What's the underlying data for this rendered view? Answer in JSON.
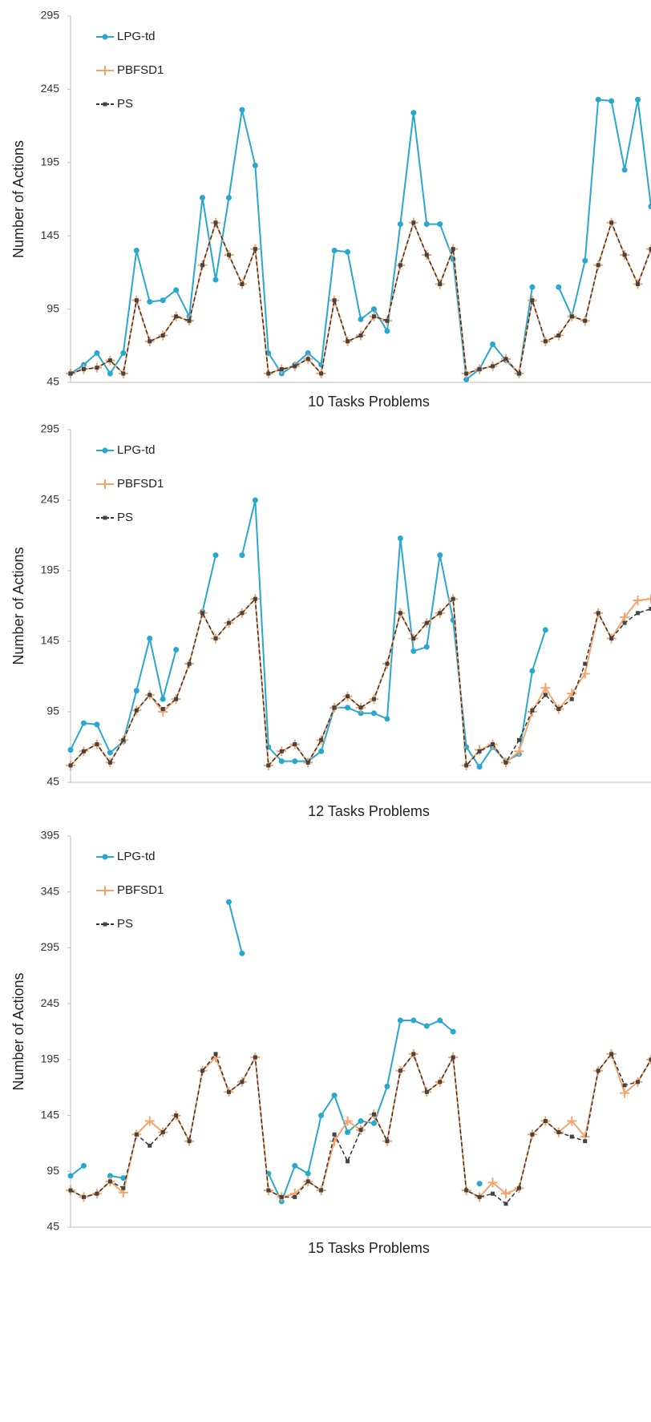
{
  "chart_data": [
    {
      "type": "line",
      "x_label": "10 Tasks Problems",
      "y_label": "Number of Actions",
      "ylim": [
        45,
        295
      ],
      "yticks": [
        45,
        95,
        145,
        195,
        245,
        295
      ],
      "series": [
        {
          "name": "LPG-td",
          "color": "#2aa7cf",
          "values": [
            51,
            57,
            65,
            51,
            65,
            135,
            100,
            101,
            108,
            90,
            171,
            115,
            171,
            231,
            193,
            65,
            51,
            57,
            65,
            57,
            135,
            134,
            88,
            95,
            80,
            153,
            229,
            153,
            153,
            129,
            47,
            54,
            71,
            60,
            51,
            110,
            null,
            110,
            90,
            128,
            238,
            237,
            190,
            238,
            165
          ]
        },
        {
          "name": "PBFSD1",
          "color": "#f4a46b",
          "values": [
            51,
            54,
            55,
            60,
            51,
            101,
            73,
            77,
            90,
            87,
            125,
            154,
            132,
            112,
            136,
            51,
            54,
            56,
            61,
            51,
            101,
            73,
            77,
            90,
            87,
            125,
            154,
            132,
            112,
            136,
            51,
            54,
            56,
            61,
            51,
            101,
            73,
            77,
            90,
            87,
            125,
            154,
            132,
            112,
            136
          ]
        },
        {
          "name": "PS",
          "color": "#333333",
          "values": [
            51,
            54,
            55,
            60,
            51,
            101,
            73,
            77,
            90,
            87,
            125,
            154,
            132,
            112,
            136,
            51,
            54,
            56,
            61,
            51,
            101,
            73,
            77,
            90,
            87,
            125,
            154,
            132,
            112,
            136,
            51,
            54,
            56,
            61,
            51,
            101,
            73,
            77,
            90,
            87,
            125,
            154,
            132,
            112,
            136
          ]
        }
      ]
    },
    {
      "type": "line",
      "x_label": "12 Tasks Problems",
      "y_label": "Number of Actions",
      "ylim": [
        45,
        295
      ],
      "yticks": [
        45,
        95,
        145,
        195,
        245,
        295
      ],
      "series": [
        {
          "name": "LPG-td",
          "color": "#2aa7cf",
          "values": [
            68,
            87,
            86,
            66,
            74,
            110,
            147,
            104,
            139,
            null,
            166,
            206,
            null,
            206,
            245,
            70,
            60,
            60,
            60,
            67,
            98,
            98,
            94,
            94,
            90,
            218,
            138,
            141,
            206,
            160,
            70,
            56,
            70,
            60,
            65,
            124,
            153,
            null,
            null,
            null,
            null,
            null,
            null,
            null,
            null
          ]
        },
        {
          "name": "PBFSD1",
          "color": "#f4a46b",
          "values": [
            57,
            67,
            72,
            59,
            75,
            96,
            107,
            95,
            104,
            129,
            165,
            147,
            158,
            165,
            175,
            57,
            67,
            72,
            59,
            75,
            98,
            106,
            98,
            104,
            129,
            165,
            147,
            158,
            165,
            175,
            57,
            68,
            72,
            59,
            67,
            95,
            112,
            97,
            108,
            122,
            165,
            147,
            162,
            174,
            175
          ]
        },
        {
          "name": "PS",
          "color": "#333333",
          "values": [
            57,
            67,
            72,
            59,
            75,
            96,
            107,
            97,
            104,
            129,
            165,
            147,
            158,
            165,
            175,
            57,
            67,
            72,
            59,
            75,
            98,
            106,
            98,
            104,
            129,
            165,
            147,
            158,
            165,
            175,
            57,
            67,
            72,
            59,
            75,
            96,
            107,
            97,
            104,
            129,
            165,
            147,
            158,
            165,
            168
          ]
        }
      ]
    },
    {
      "type": "line",
      "x_label": "15 Tasks Problems",
      "y_label": "Number of Actions",
      "ylim": [
        45,
        395
      ],
      "yticks": [
        45,
        95,
        145,
        195,
        245,
        295,
        345,
        395
      ],
      "series": [
        {
          "name": "LPG-td",
          "color": "#2aa7cf",
          "values": [
            91,
            100,
            null,
            91,
            89,
            null,
            null,
            null,
            null,
            null,
            null,
            null,
            336,
            290,
            null,
            93,
            68,
            100,
            93,
            145,
            163,
            130,
            140,
            138,
            171,
            230,
            230,
            225,
            230,
            220,
            null,
            84,
            null,
            null,
            null,
            null,
            null,
            null,
            null,
            null,
            null,
            null,
            null,
            null,
            null
          ]
        },
        {
          "name": "PBFSD1",
          "color": "#f4a46b",
          "values": [
            78,
            72,
            75,
            86,
            76,
            128,
            140,
            130,
            145,
            122,
            185,
            197,
            166,
            175,
            197,
            78,
            72,
            75,
            86,
            78,
            122,
            140,
            132,
            146,
            122,
            185,
            200,
            166,
            175,
            197,
            78,
            72,
            85,
            75,
            80,
            128,
            140,
            130,
            140,
            126,
            185,
            200,
            165,
            175,
            195
          ]
        },
        {
          "name": "PS",
          "color": "#333333",
          "values": [
            78,
            72,
            75,
            86,
            80,
            128,
            118,
            130,
            145,
            122,
            185,
            200,
            166,
            175,
            197,
            78,
            72,
            72,
            86,
            78,
            128,
            104,
            132,
            146,
            122,
            185,
            200,
            166,
            175,
            197,
            78,
            72,
            75,
            66,
            80,
            128,
            140,
            130,
            126,
            122,
            185,
            200,
            172,
            175,
            195
          ]
        }
      ]
    }
  ]
}
